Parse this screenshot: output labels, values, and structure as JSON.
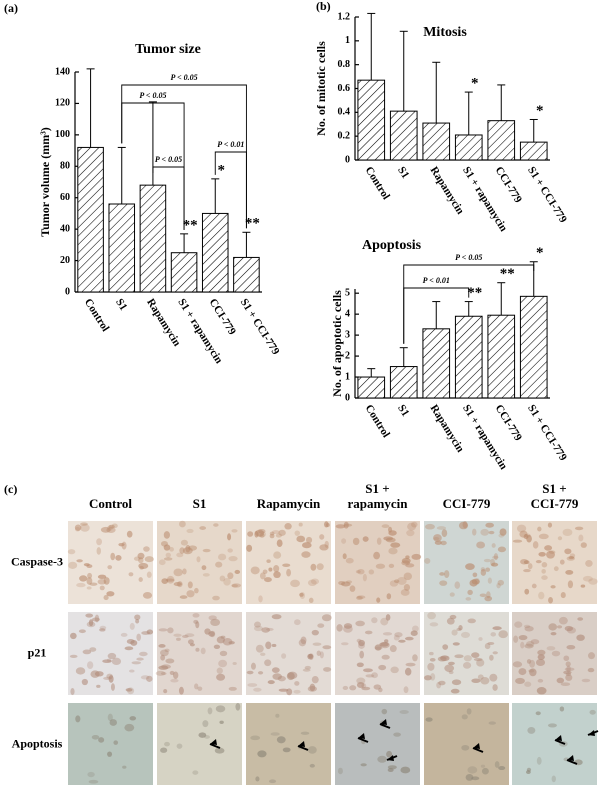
{
  "panel_labels": [
    "(a)",
    "(b)",
    "(c)"
  ],
  "chart_data": [
    {
      "type": "bar",
      "title": "Tumor size",
      "y_label": "Tumor volume (mm³)",
      "categories": [
        "Control",
        "S1",
        "Rapamycin",
        "S1 + rapamycin",
        "CCI-779",
        "S1 + CCI-779"
      ],
      "values": [
        92,
        56,
        68,
        25,
        50,
        22
      ],
      "errors": [
        50,
        36,
        53,
        12,
        22,
        16
      ],
      "color": "#000000",
      "hatch": true,
      "ylim": [
        0,
        140
      ],
      "yticks": [
        0,
        20,
        40,
        60,
        80,
        100,
        120,
        140
      ],
      "annotations": [
        "P < 0.05",
        "P < 0.05",
        "P < 0.05",
        "P < 0.01",
        "**",
        "*",
        "**"
      ]
    },
    {
      "type": "bar",
      "title": "Mitosis",
      "y_label": "No. of mitotic cells",
      "categories": [
        "Control",
        "S1",
        "Rapamycin",
        "S1 + rapamycin",
        "CCI-779",
        "S1 + CCI-779"
      ],
      "values": [
        0.67,
        0.41,
        0.31,
        0.21,
        0.33,
        0.15
      ],
      "errors": [
        0.56,
        0.67,
        0.51,
        0.36,
        0.3,
        0.19
      ],
      "color": "#000000",
      "hatch": true,
      "ylim": [
        0,
        1.2
      ],
      "yticks": [
        0,
        0.2,
        0.4,
        0.6,
        0.8,
        1,
        1.2
      ],
      "annotations": [
        "*",
        "*"
      ]
    },
    {
      "type": "bar",
      "title": "Apoptosis",
      "y_label": "No. of apoptotic cells",
      "categories": [
        "Control",
        "S1",
        "Rapamycin",
        "S1 + rapamycin",
        "CCI-779",
        "S1 + CCI-779"
      ],
      "values": [
        1.0,
        1.5,
        3.3,
        3.9,
        3.95,
        4.85
      ],
      "errors": [
        0.4,
        0.9,
        1.3,
        0.7,
        1.55,
        1.65
      ],
      "color": "#000000",
      "hatch": true,
      "ylim": [
        0,
        5.2
      ],
      "yticks": [
        0,
        1,
        2,
        3,
        4,
        5
      ],
      "annotations": [
        "P < 0.05",
        "P < 0.01",
        "**",
        "**",
        "*"
      ]
    }
  ],
  "panel_c": {
    "columns": [
      [
        "Control"
      ],
      [
        "S1"
      ],
      [
        "Rapamycin"
      ],
      [
        "S1 +",
        "rapamycin"
      ],
      [
        "CCI-779"
      ],
      [
        "S1 +",
        "CCI-779"
      ]
    ],
    "rows": [
      "Caspase-3",
      "p21",
      "Apoptosis"
    ]
  }
}
